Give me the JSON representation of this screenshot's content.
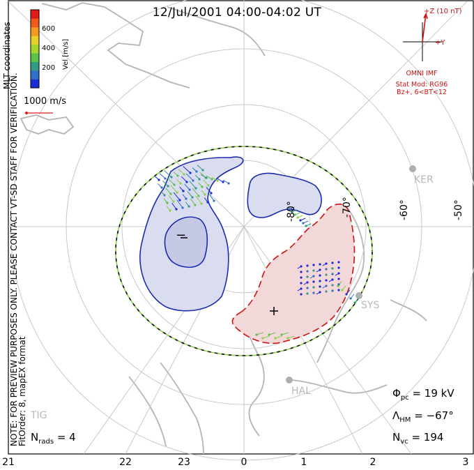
{
  "title": "12/Jul/2001 04:00-04:02 UT",
  "disclaimer": "NOTE: FOR PREVIEW PURPOSES ONLY. PLEASE CONTACT VT-SD STAFF FOR VERIFICATION.",
  "fit_info": "FitOrder: 8, mapEX format",
  "coordinates": "MLT coordinates",
  "velocity_scale": {
    "label": "Vel [m/s]",
    "ticks": [
      "200",
      "400",
      "600"
    ],
    "colors": [
      "#1a2bd8",
      "#2f6fc7",
      "#2f9a86",
      "#5cc24a",
      "#a6d62a",
      "#e8d02a",
      "#f29a22",
      "#ef5a1c",
      "#e01a1a"
    ]
  },
  "reference_vector": {
    "label": "1000 m/s",
    "color": "#e01a1a"
  },
  "imf": {
    "z_label": "+Z (10 nT)",
    "y_label": "+Y",
    "source": "OMNI IMF",
    "stat_model": "Stat Mod: RG96",
    "condition": "Bz+, 6<BT<12"
  },
  "latitude_labels": [
    "-60°",
    "-50°",
    "-70°",
    "-80°"
  ],
  "stations": [
    "KER",
    "SYS",
    "HAL",
    "TIG"
  ],
  "cell_signs": {
    "negative": "−",
    "positive": "+"
  },
  "stats": {
    "phi_symbol": "Φ",
    "phi_sub": "pc",
    "phi_value": "= 19 kV",
    "lambda_symbol": "Λ",
    "lambda_sub": "HM",
    "lambda_value": "= −67°",
    "nvc_symbol": "N",
    "nvc_sub": "vc",
    "nvc_value": "= 194",
    "nrads_symbol": "N",
    "nrads_sub": "rads",
    "nrads_value": "= 4"
  },
  "mlt_labels": [
    "21",
    "22",
    "23",
    "0",
    "1",
    "2",
    "3"
  ]
}
